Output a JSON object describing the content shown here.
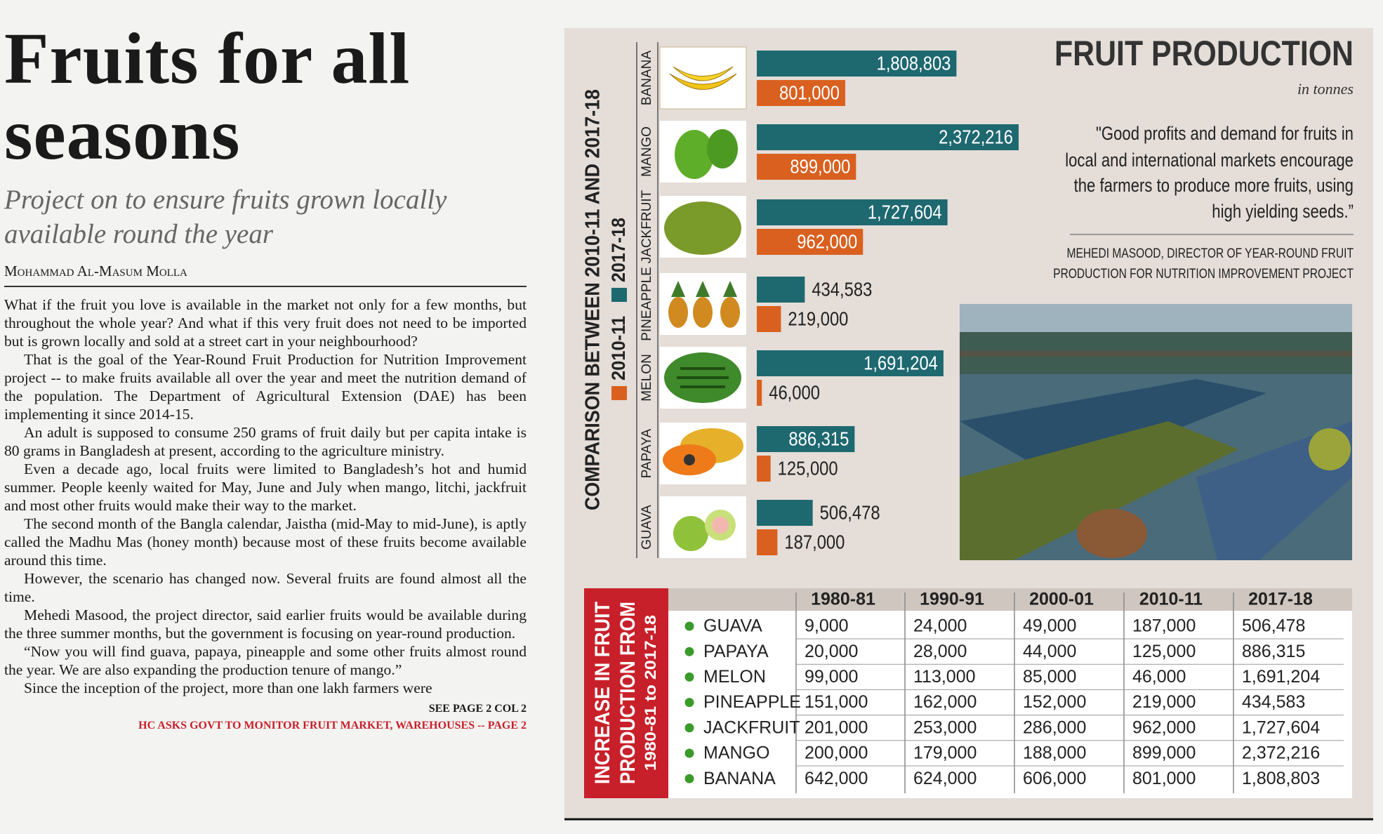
{
  "article": {
    "headline": [
      "Fruits for all",
      "seasons"
    ],
    "subhead": [
      "Project on to ensure fruits grown locally",
      "available round the year"
    ],
    "byline": "Mohammad Al-Masum Molla",
    "paragraphs": [
      "What if the fruit you love is available in the market not only for a few months, but throughout the whole year? And what if this very fruit does not need to be imported but is grown locally and sold at a street cart in your neighbourhood?",
      "That is the goal of the Year-Round Fruit Production for Nutrition Improvement project -- to make fruits available all over the year and meet the nutrition demand of the population. The Department of Agricultural Extension (DAE) has been implementing it since 2014-15.",
      "An adult is supposed to consume 250 grams of fruit daily but per capita intake is 80 grams in Bangladesh at present, according to the agriculture ministry.",
      "Even a decade ago, local fruits were limited to Bangladesh’s hot and humid summer. People keenly waited for May, June and July when mango, litchi, jackfruit and most other fruits would make their way to the market.",
      "The second month of the Bangla calendar, Jaistha (mid-May to mid-June), is aptly called the Madhu Mas (honey month) because most of these fruits become available around this time.",
      "However, the scenario has changed now. Several fruits are found almost all the time.",
      "Mehedi Masood, the project director, said earlier fruits would be available during the three summer months, but the government is focusing on year-round production.",
      "“Now you will find guava, papaya, pineapple and some other fruits almost round the year. We are also expanding the production tenure of mango.”",
      "Since the inception of the project, more than one lakh farmers were"
    ],
    "continued": "SEE PAGE 2 COL 2",
    "teaser": "HC ASKS GOVT TO MONITOR FRUIT MARKET, WAREHOUSES -- PAGE 2"
  },
  "chart_data": {
    "type": "bar",
    "orientation": "horizontal",
    "title": "FRUIT PRODUCTION",
    "subtitle": "in tonnes",
    "axis_label": "COMPARISON BETWEEN 2010-11 AND 2017-18",
    "categories": [
      "BANANA",
      "MANGO",
      "JACKFRUIT",
      "PINEAPPLE",
      "MELON",
      "PAPAYA",
      "GUAVA"
    ],
    "series": [
      {
        "name": "2010-11",
        "color": "#d9601f",
        "values": [
          801000,
          899000,
          962000,
          219000,
          46000,
          125000,
          187000
        ],
        "value_labels": [
          "801,000",
          "899,000",
          "962,000",
          "219,000",
          "46,000",
          "125,000",
          "187,000"
        ]
      },
      {
        "name": "2017-18",
        "color": "#1e6870",
        "values": [
          1808803,
          2372216,
          1727604,
          434583,
          1691204,
          886315,
          506478
        ],
        "value_labels": [
          "1,808,803",
          "2,372,216",
          "1,727,604",
          "434,583",
          "1,691,204",
          "886,315",
          "506,478"
        ]
      }
    ]
  },
  "quote": {
    "lines": [
      "\"Good profits and demand for fruits in",
      "local and international markets encourage",
      "the farmers to produce more fruits, using",
      "high yielding seeds.”"
    ],
    "attribution": [
      "MEHEDI MASOOD, DIRECTOR OF YEAR-ROUND FRUIT",
      "PRODUCTION FOR NUTRITION IMPROVEMENT PROJECT"
    ]
  },
  "table": {
    "title": [
      "INCREASE IN FRUIT",
      "PRODUCTION FROM"
    ],
    "subtitle": "1980-81 to 2017-18",
    "columns": [
      "1980-81",
      "1990-91",
      "2000-01",
      "2010-11",
      "2017-18"
    ],
    "rows": [
      {
        "name": "GUAVA",
        "values": [
          "9,000",
          "24,000",
          "49,000",
          "187,000",
          "506,478"
        ]
      },
      {
        "name": "PAPAYA",
        "values": [
          "20,000",
          "28,000",
          "44,000",
          "125,000",
          "886,315"
        ]
      },
      {
        "name": "MELON",
        "values": [
          "99,000",
          "113,000",
          "85,000",
          "46,000",
          "1,691,204"
        ]
      },
      {
        "name": "PINEAPPLE",
        "values": [
          "151,000",
          "162,000",
          "152,000",
          "219,000",
          "434,583"
        ]
      },
      {
        "name": "JACKFRUIT",
        "values": [
          "201,000",
          "253,000",
          "286,000",
          "962,000",
          "1,727,604"
        ]
      },
      {
        "name": "MANGO",
        "values": [
          "200,000",
          "179,000",
          "188,000",
          "899,000",
          "2,372,216"
        ]
      },
      {
        "name": "BANANA",
        "values": [
          "642,000",
          "624,000",
          "606,000",
          "801,000",
          "1,808,803"
        ]
      }
    ]
  }
}
